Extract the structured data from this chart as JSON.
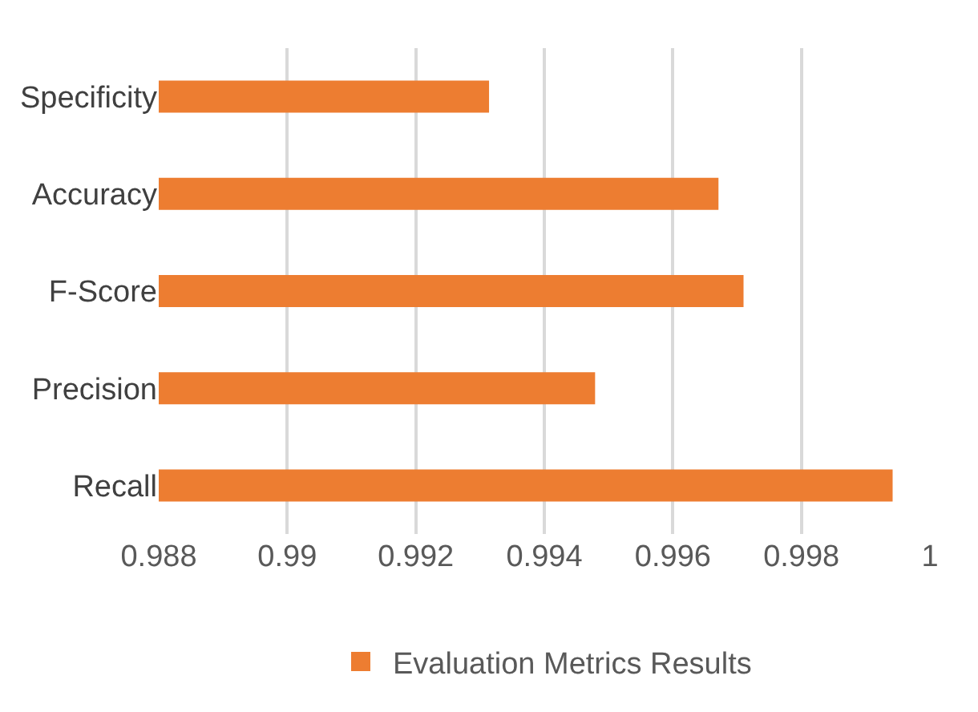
{
  "chart_data": {
    "type": "bar",
    "orientation": "horizontal",
    "categories": [
      "Specificity",
      "Accuracy",
      "F-Score",
      "Precision",
      "Recall"
    ],
    "series": [
      {
        "name": "Evaluation Metrics Results",
        "color": "#ed7d31",
        "values": [
          0.99314,
          0.99671,
          0.9971,
          0.99479,
          0.99942
        ]
      }
    ],
    "xlim": [
      0.988,
      1
    ],
    "xticks": [
      0.988,
      0.99,
      0.992,
      0.994,
      0.996,
      0.998,
      1
    ],
    "grid": "x",
    "legend": "bottom"
  }
}
